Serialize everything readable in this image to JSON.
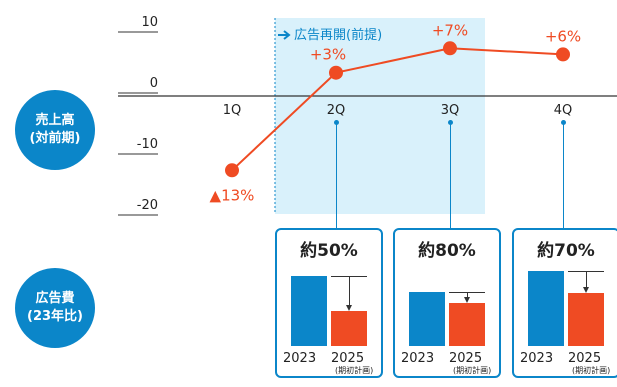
{
  "chart_data": [
    {
      "type": "line",
      "categories": [
        "1Q",
        "2Q",
        "3Q",
        "4Q"
      ],
      "values": [
        -13,
        3,
        7,
        6
      ],
      "value_labels": [
        "▲13%",
        "+3%",
        "+7%",
        "+6%"
      ],
      "yticks": [
        "10",
        "0",
        "-10",
        "-20"
      ],
      "ylim": [
        -20,
        10
      ],
      "color": "#ef4b23",
      "highlight_label": "広告再開(前提)",
      "highlight_color": "#d9f1fb"
    },
    {
      "type": "bar",
      "categories": [
        "2Q",
        "3Q",
        "4Q"
      ],
      "series_labels": [
        "2023",
        "2025"
      ],
      "series_sublabel": "(期初計画)",
      "ratios": [
        0.5,
        0.8,
        0.7
      ],
      "ratio_labels": [
        "約50%",
        "約80%",
        "約70%"
      ],
      "colors": {
        "2023": "#0b86c9",
        "2025": "#ef4b23"
      }
    }
  ],
  "badges": {
    "sales_line1": "売上高",
    "sales_line2": "(対前期)",
    "ad_line1": "広告費",
    "ad_line2": "(23年比)"
  }
}
